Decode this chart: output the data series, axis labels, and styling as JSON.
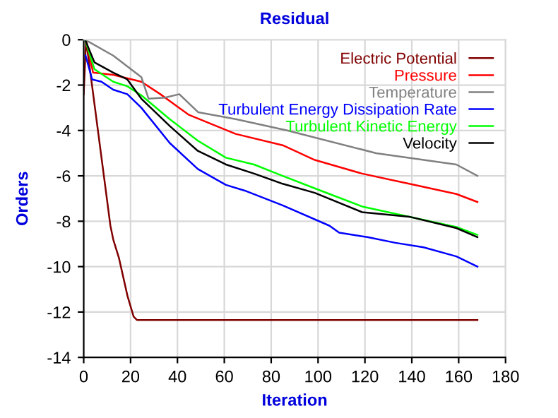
{
  "chart_data": {
    "type": "line",
    "title": "Residual",
    "xlabel": "Iteration",
    "ylabel": "Orders",
    "xlim": [
      0,
      180
    ],
    "xticks": [
      0,
      20,
      40,
      60,
      80,
      100,
      120,
      140,
      160,
      180
    ],
    "ylim": [
      -14,
      0
    ],
    "yticks": [
      -14,
      -12,
      -10,
      -8,
      -6,
      -4,
      -2,
      0
    ],
    "grid": true,
    "legend": "top right",
    "marker": "none",
    "line_style": "solid",
    "series": [
      {
        "name": "Electric Potential",
        "color": "#800000",
        "x": [
          0,
          1,
          11.4,
          12.6,
          15,
          18.7,
          21.3,
          22.7,
          168
        ],
        "values": [
          -2.4,
          0,
          -8.2,
          -8.8,
          -9.6,
          -11.3,
          -12.2,
          -12.35,
          -12.35
        ]
      },
      {
        "name": "Pressure",
        "color": "#ff0000",
        "x": [
          1,
          4,
          12.6,
          24.6,
          32.7,
          44.7,
          64.8,
          84.9,
          98.6,
          118.8,
          138.9,
          159,
          168
        ],
        "values": [
          0,
          -1.45,
          -1.55,
          -1.85,
          -2.4,
          -3.3,
          -4.15,
          -4.65,
          -5.3,
          -5.9,
          -6.35,
          -6.8,
          -7.15
        ]
      },
      {
        "name": "Temperature",
        "color": "#808080",
        "x": [
          0.6,
          12.6,
          24.6,
          27.7,
          34.7,
          40.8,
          48.9,
          64.9,
          86.8,
          124.8,
          159,
          168
        ],
        "values": [
          0,
          -0.7,
          -1.65,
          -2.6,
          -2.55,
          -2.4,
          -3.2,
          -3.5,
          -4.0,
          -5.0,
          -5.5,
          -6.0
        ]
      },
      {
        "name": "Turbulent Energy Dissipation Rate",
        "color": "#0000ff",
        "x": [
          0.8,
          3.6,
          7.6,
          12.6,
          18.6,
          24.6,
          36.7,
          48.7,
          60.7,
          68.7,
          84.9,
          104.9,
          109,
          121,
          133,
          145,
          159,
          168
        ],
        "values": [
          -0.7,
          -1.75,
          -1.85,
          -2.2,
          -2.4,
          -3.0,
          -4.55,
          -5.7,
          -6.4,
          -6.65,
          -7.3,
          -8.2,
          -8.5,
          -8.7,
          -8.95,
          -9.15,
          -9.55,
          -10.0
        ]
      },
      {
        "name": "Turbulent Kinetic Energy",
        "color": "#00ff00",
        "x": [
          0.6,
          4.6,
          12.6,
          18.6,
          24.6,
          36.7,
          48.7,
          60.7,
          72.7,
          84.9,
          98.6,
          118.8,
          138.9,
          159,
          168
        ],
        "values": [
          0,
          -1.3,
          -1.85,
          -2.05,
          -2.45,
          -3.5,
          -4.45,
          -5.2,
          -5.5,
          -6.0,
          -6.55,
          -7.35,
          -7.8,
          -8.25,
          -8.6
        ]
      },
      {
        "name": "Velocity",
        "color": "#000000",
        "x": [
          0.6,
          4.6,
          12.6,
          18.6,
          24.6,
          36.7,
          48.7,
          60.7,
          72.7,
          84.9,
          98.6,
          118.8,
          138.9,
          159,
          168
        ],
        "values": [
          0,
          -1.0,
          -1.45,
          -1.75,
          -2.6,
          -3.8,
          -4.9,
          -5.5,
          -5.9,
          -6.35,
          -6.75,
          -7.6,
          -7.8,
          -8.3,
          -8.7
        ]
      }
    ]
  }
}
